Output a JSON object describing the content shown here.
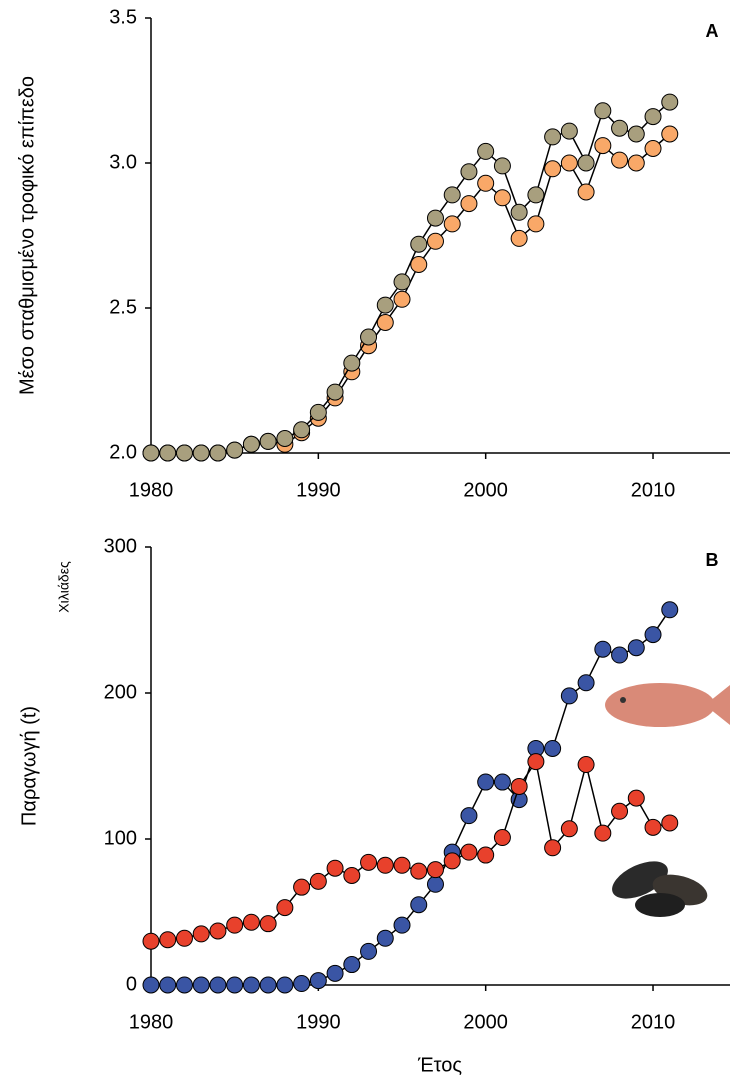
{
  "chart_data": [
    {
      "type": "line",
      "panel_label": "A",
      "ylabel": "Μέσο σταθμισμένο τροφικό επίπεδο",
      "x": [
        1980,
        1981,
        1982,
        1983,
        1984,
        1985,
        1986,
        1987,
        1988,
        1989,
        1990,
        1991,
        1992,
        1993,
        1994,
        1995,
        1996,
        1997,
        1998,
        1999,
        2000,
        2001,
        2002,
        2003,
        2004,
        2005,
        2006,
        2007,
        2008,
        2009,
        2010,
        2011
      ],
      "series": [
        {
          "color": "#f9a868",
          "values": [
            2.0,
            2.0,
            2.0,
            2.0,
            2.0,
            2.01,
            2.03,
            2.04,
            2.03,
            2.07,
            2.12,
            2.19,
            2.28,
            2.37,
            2.45,
            2.53,
            2.65,
            2.73,
            2.79,
            2.86,
            2.93,
            2.88,
            2.74,
            2.79,
            2.98,
            3.0,
            2.9,
            3.06,
            3.01,
            3.0,
            3.05,
            3.1
          ]
        },
        {
          "color": "#a89f7e",
          "values": [
            2.0,
            2.0,
            2.0,
            2.0,
            2.0,
            2.01,
            2.03,
            2.04,
            2.05,
            2.08,
            2.14,
            2.21,
            2.31,
            2.4,
            2.51,
            2.59,
            2.72,
            2.81,
            2.89,
            2.97,
            3.04,
            2.99,
            2.83,
            2.89,
            3.09,
            3.11,
            3.0,
            3.18,
            3.12,
            3.1,
            3.16,
            3.21
          ]
        }
      ],
      "xlim": [
        1980,
        2014.6
      ],
      "xticks": [
        1980,
        1990,
        2000,
        2010
      ],
      "ylim": [
        2.0,
        3.5
      ],
      "yticks": [
        {
          "value": 2.0,
          "label": "2.0"
        },
        2.5,
        {
          "value": 3.0,
          "label": "3.0"
        },
        3.5
      ]
    },
    {
      "type": "line",
      "panel_label": "B",
      "ylabel": "Παραγωγή (t)",
      "yunit": "Χιλιάδες",
      "xlabel": "Έτος",
      "x": [
        1980,
        1981,
        1982,
        1983,
        1984,
        1985,
        1986,
        1987,
        1988,
        1989,
        1990,
        1991,
        1992,
        1993,
        1994,
        1995,
        1996,
        1997,
        1998,
        1999,
        2000,
        2001,
        2002,
        2003,
        2004,
        2005,
        2006,
        2007,
        2008,
        2009,
        2010,
        2011
      ],
      "series": [
        {
          "color": "#3a55a4",
          "values": [
            0,
            0,
            0,
            0,
            0,
            0,
            0,
            0,
            0,
            1,
            3,
            8,
            14,
            23,
            32,
            41,
            55,
            69,
            91,
            116,
            139,
            139,
            127,
            162,
            162,
            198,
            207,
            230,
            226,
            231,
            240,
            257
          ]
        },
        {
          "color": "#e8412c",
          "values": [
            30,
            31,
            32,
            35,
            37,
            41,
            43,
            42,
            53,
            67,
            71,
            80,
            75,
            84,
            82,
            82,
            78,
            79,
            85,
            91,
            89,
            101,
            136,
            153,
            94,
            107,
            151,
            104,
            119,
            128,
            108,
            111
          ]
        }
      ],
      "xlim": [
        1980,
        2014.6
      ],
      "xticks": [
        1980,
        1990,
        2000,
        2010
      ],
      "ylim": [
        0,
        300
      ],
      "yticks": [
        0,
        100,
        200,
        300
      ]
    }
  ]
}
